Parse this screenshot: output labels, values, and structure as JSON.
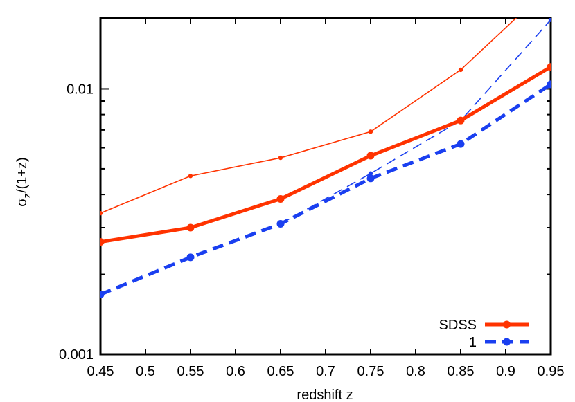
{
  "chart_data": {
    "type": "line",
    "xlabel": "redshift z",
    "ylabel": "σ_z/(1+z)",
    "xlim": [
      0.45,
      0.95
    ],
    "ylim": [
      0.001,
      0.0185
    ],
    "y_scale": "log",
    "grid": false,
    "legend_position": "bottom-right",
    "x_ticks": [
      0.45,
      0.5,
      0.55,
      0.6,
      0.65,
      0.7,
      0.75,
      0.8,
      0.85,
      0.9,
      0.95
    ],
    "x_tick_labels": [
      "0.45",
      "0.5",
      "0.55",
      "0.6",
      "0.65",
      "0.7",
      "0.75",
      "0.8",
      "0.85",
      "0.9",
      "0.95"
    ],
    "y_ticks": [
      0.001,
      0.01
    ],
    "y_tick_labels": [
      "0.001",
      "0.01"
    ],
    "series": [
      {
        "name": "SDSS",
        "legend": true,
        "color": "#ff3300",
        "style": "solid-thick",
        "x": [
          0.45,
          0.55,
          0.65,
          0.75,
          0.85,
          0.95
        ],
        "y": [
          0.00265,
          0.003,
          0.00385,
          0.0056,
          0.0076,
          0.0121
        ]
      },
      {
        "name": "1",
        "legend": true,
        "color": "#1a3ff0",
        "style": "dashed-thick",
        "x": [
          0.45,
          0.55,
          0.65,
          0.75,
          0.85,
          0.95
        ],
        "y": [
          0.00168,
          0.00232,
          0.0031,
          0.0046,
          0.0062,
          0.0104
        ]
      },
      {
        "legend": false,
        "color": "#ff3300",
        "style": "solid-thin",
        "x": [
          0.45,
          0.55,
          0.65,
          0.75,
          0.85,
          0.95
        ],
        "y": [
          0.0034,
          0.0047,
          0.0055,
          0.0069,
          0.0118,
          0.0245
        ]
      },
      {
        "legend": false,
        "color": "#1a3ff0",
        "style": "dashed-thin",
        "x": [
          0.65,
          0.75,
          0.85,
          0.95
        ],
        "y": [
          0.0031,
          0.0048,
          0.0076,
          0.0182
        ]
      }
    ]
  }
}
